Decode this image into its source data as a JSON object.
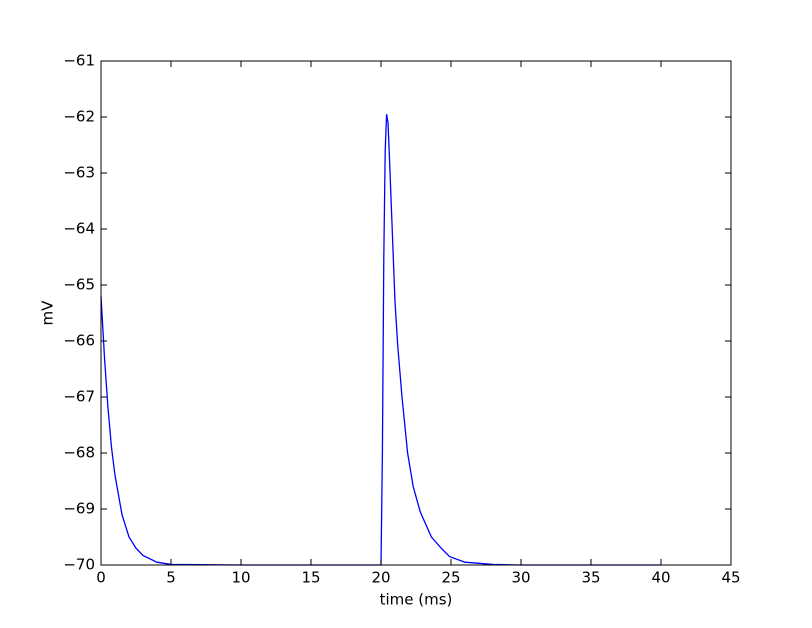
{
  "chart_data": {
    "type": "line",
    "xlabel": "time (ms)",
    "ylabel": "mV",
    "x": [
      0,
      0.25,
      0.5,
      0.75,
      1,
      1.5,
      2,
      2.5,
      3,
      4,
      5,
      10,
      15,
      20,
      20.1,
      20.2,
      20.3,
      20.4,
      20.5,
      20.6,
      20.8,
      21,
      21.2,
      21.5,
      21.9,
      22.3,
      22.8,
      23.6,
      24.3,
      24.9,
      26,
      28,
      30,
      35,
      40
    ],
    "values": [
      -65.2,
      -66.3,
      -67.2,
      -67.9,
      -68.4,
      -69.1,
      -69.5,
      -69.7,
      -69.83,
      -69.95,
      -69.99,
      -70,
      -70,
      -70,
      -68,
      -64.5,
      -62.6,
      -61.95,
      -62.1,
      -62.7,
      -64,
      -65.3,
      -66.1,
      -67,
      -68,
      -68.6,
      -69.05,
      -69.5,
      -69.7,
      -69.85,
      -69.95,
      -69.99,
      -70,
      -70,
      -70
    ],
    "color": "#0000ff",
    "xlim": [
      0,
      45
    ],
    "xticks": [
      0,
      5,
      10,
      15,
      20,
      25,
      30,
      35,
      40,
      45
    ],
    "ylim": [
      -70,
      -61
    ],
    "yticks": [
      {
        "value": -70,
        "label": "−70"
      },
      {
        "value": -69,
        "label": "−69"
      },
      {
        "value": -68,
        "label": "−68"
      },
      {
        "value": -67,
        "label": "−67"
      },
      {
        "value": -66,
        "label": "−66"
      },
      {
        "value": -65,
        "label": "−65"
      },
      {
        "value": -64,
        "label": "−64"
      },
      {
        "value": -63,
        "label": "−63"
      },
      {
        "value": -62,
        "label": "−62"
      },
      {
        "value": -61,
        "label": "−61"
      }
    ]
  }
}
